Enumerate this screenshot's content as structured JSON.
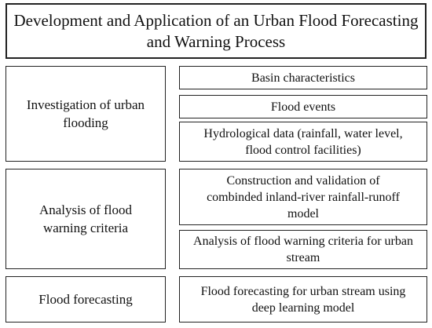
{
  "title": "Development and Application of an Urban Flood Forecasting and Warning Process",
  "sections": [
    {
      "label": "Investigation of urban flooding",
      "items": [
        "Basin characteristics",
        "Flood events",
        "Hydrological data (rainfall, water level, flood control facilities)"
      ]
    },
    {
      "label": "Analysis of flood warning criteria",
      "items": [
        "Construction and validation of combinded inland-river rainfall-runoff model",
        "Analysis of flood warning criteria for urban stream"
      ]
    },
    {
      "label": "Flood forecasting",
      "items": [
        "Flood forecasting for urban stream using deep learning model"
      ]
    }
  ]
}
